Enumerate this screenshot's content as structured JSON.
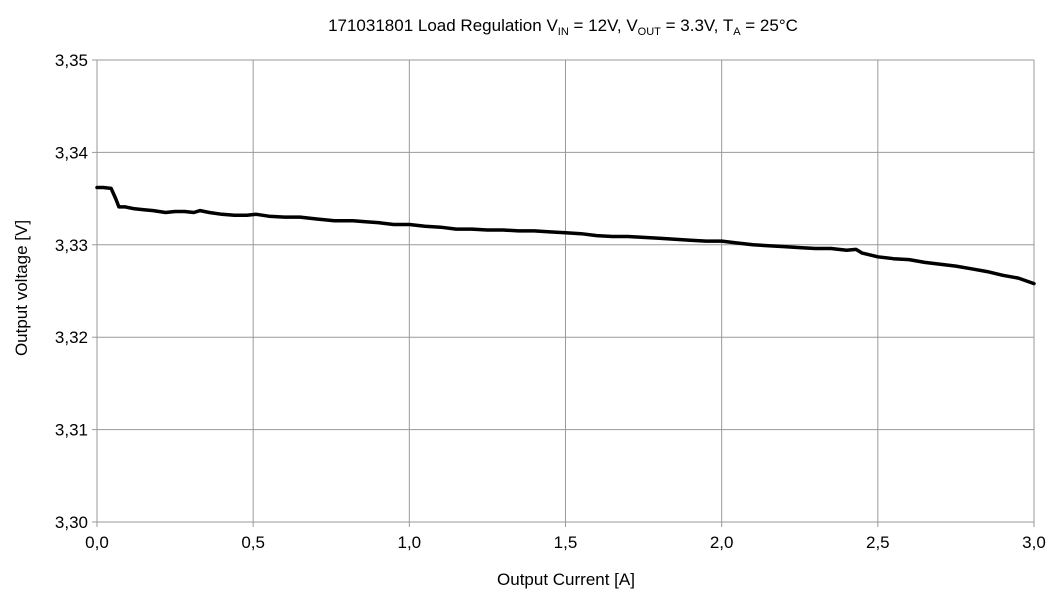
{
  "chart_data": {
    "type": "line",
    "title": {
      "id": "171031801",
      "name": "Load Regulation",
      "vin_sym": "V",
      "vin_sub": "IN",
      "vin_val": " = 12V, ",
      "vout_sym": "V",
      "vout_sub": "OUT",
      "vout_val": " = 3.3V, ",
      "ta_sym": "T",
      "ta_sub": "A",
      "ta_val": " = 25°C"
    },
    "xlabel": "Output Current [A]",
    "ylabel": "Output voltage [V]",
    "xlim": [
      0,
      3
    ],
    "ylim": [
      3.3,
      3.35
    ],
    "x_ticks": [
      "0,0",
      "0,5",
      "1,0",
      "1,5",
      "2,0",
      "2,5",
      "3,0"
    ],
    "y_ticks": [
      "3,35",
      "3,34",
      "3,33",
      "3,32",
      "3,31",
      "3,30"
    ],
    "grid": true,
    "legend": "none",
    "line_color": "#000000",
    "series": [
      {
        "x": [
          0.0,
          0.02,
          0.045,
          0.06,
          0.07,
          0.09,
          0.12,
          0.15,
          0.18,
          0.22,
          0.25,
          0.28,
          0.31,
          0.33,
          0.36,
          0.4,
          0.44,
          0.48,
          0.51,
          0.55,
          0.6,
          0.65,
          0.7,
          0.76,
          0.82,
          0.86,
          0.9,
          0.95,
          1.0,
          1.05,
          1.1,
          1.15,
          1.2,
          1.25,
          1.3,
          1.35,
          1.4,
          1.45,
          1.5,
          1.55,
          1.6,
          1.65,
          1.7,
          1.75,
          1.8,
          1.85,
          1.9,
          1.95,
          2.0,
          2.05,
          2.1,
          2.15,
          2.2,
          2.25,
          2.3,
          2.35,
          2.4,
          2.43,
          2.45,
          2.5,
          2.55,
          2.6,
          2.65,
          2.7,
          2.75,
          2.8,
          2.85,
          2.9,
          2.95,
          3.0
        ],
        "y": [
          3.3362,
          3.3362,
          3.3361,
          3.335,
          3.3341,
          3.3341,
          3.3339,
          3.3338,
          3.3337,
          3.3335,
          3.3336,
          3.3336,
          3.3335,
          3.3337,
          3.3335,
          3.3333,
          3.3332,
          3.3332,
          3.3333,
          3.3331,
          3.333,
          3.333,
          3.3328,
          3.3326,
          3.3326,
          3.3325,
          3.3324,
          3.3322,
          3.3322,
          3.332,
          3.3319,
          3.3317,
          3.3317,
          3.3316,
          3.3316,
          3.3315,
          3.3315,
          3.3314,
          3.3313,
          3.3312,
          3.331,
          3.3309,
          3.3309,
          3.3308,
          3.3307,
          3.3306,
          3.3305,
          3.3304,
          3.3304,
          3.3302,
          3.33,
          3.3299,
          3.3298,
          3.3297,
          3.3296,
          3.3296,
          3.3294,
          3.3295,
          3.3291,
          3.3287,
          3.3285,
          3.3284,
          3.3281,
          3.3279,
          3.3277,
          3.3274,
          3.3271,
          3.3267,
          3.3264,
          3.3258
        ]
      }
    ]
  }
}
